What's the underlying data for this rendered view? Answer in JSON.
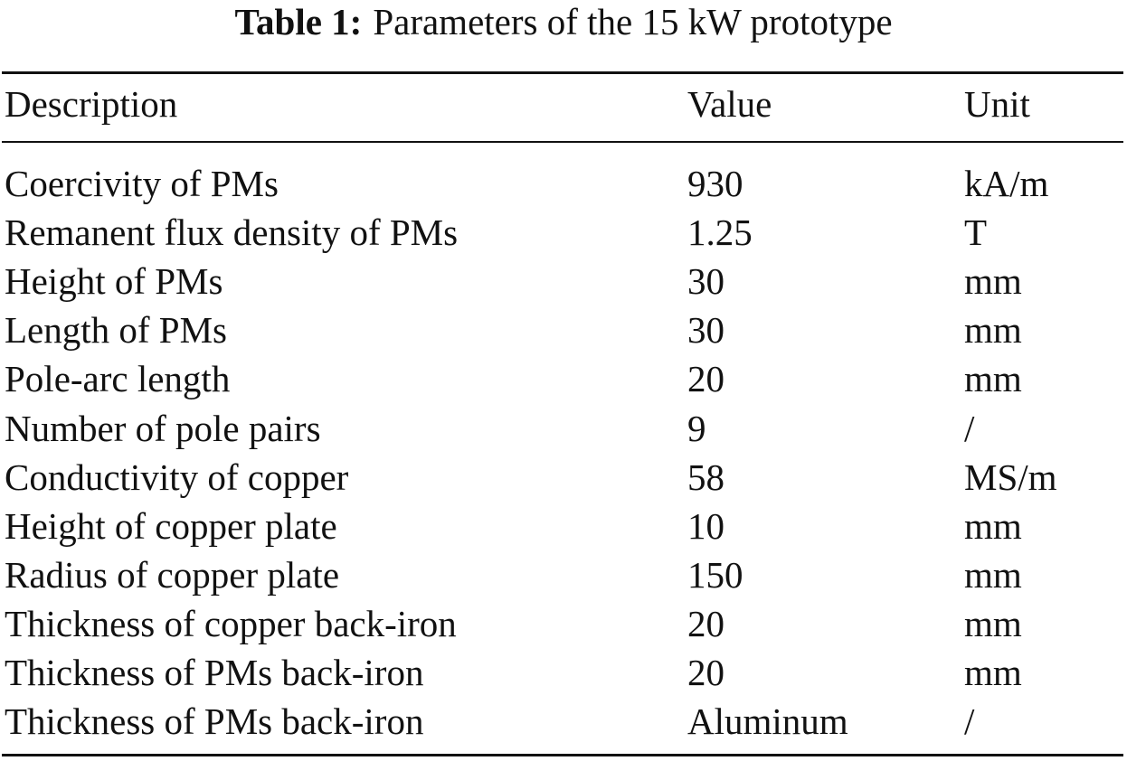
{
  "caption": {
    "label": "Table 1:",
    "text": "Parameters of the 15 kW prototype"
  },
  "table": {
    "header": [
      "Description",
      "Value",
      "Unit"
    ],
    "rows": [
      [
        "Coercivity of PMs",
        "930",
        "kA/m"
      ],
      [
        "Remanent flux density of PMs",
        "1.25",
        "T"
      ],
      [
        "Height of PMs",
        "30",
        "mm"
      ],
      [
        "Length of PMs",
        "30",
        "mm"
      ],
      [
        "Pole-arc length",
        "20",
        "mm"
      ],
      [
        "Number of pole pairs",
        "9",
        "/"
      ],
      [
        "Conductivity of copper",
        "58",
        "MS/m"
      ],
      [
        "Height of copper plate",
        "10",
        "mm"
      ],
      [
        "Radius of copper plate",
        "150",
        "mm"
      ],
      [
        "Thickness of copper back-iron",
        "20",
        "mm"
      ],
      [
        "Thickness of PMs back-iron",
        "20",
        "mm"
      ],
      [
        "Thickness of PMs back-iron",
        "Aluminum",
        "/"
      ]
    ]
  }
}
